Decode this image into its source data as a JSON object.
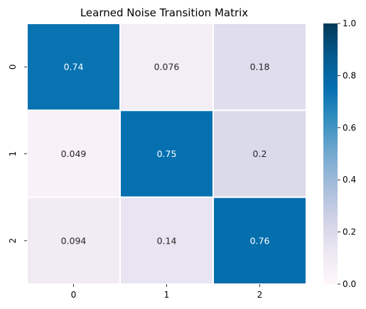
{
  "chart_data": {
    "type": "heatmap",
    "title": "Learned Noise Transition Matrix",
    "xlabel": "",
    "ylabel": "",
    "x_categories": [
      "0",
      "1",
      "2"
    ],
    "y_categories": [
      "0",
      "1",
      "2"
    ],
    "values": [
      [
        0.74,
        0.076,
        0.18
      ],
      [
        0.049,
        0.75,
        0.2
      ],
      [
        0.094,
        0.14,
        0.76
      ]
    ],
    "labels": [
      [
        "0.74",
        "0.076",
        "0.18"
      ],
      [
        "0.049",
        "0.75",
        "0.2"
      ],
      [
        "0.094",
        "0.14",
        "0.76"
      ]
    ],
    "colorbar": {
      "range": [
        0.0,
        1.0
      ],
      "ticks": [
        "0.0",
        "0.2",
        "0.4",
        "0.6",
        "0.8",
        "1.0"
      ],
      "colormap": "PuBu"
    },
    "cell_border_color": "#ffffff"
  }
}
